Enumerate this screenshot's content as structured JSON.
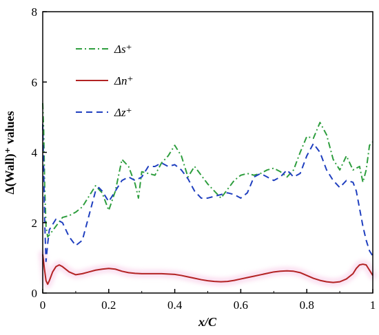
{
  "chart_data": {
    "type": "line",
    "title": "",
    "xlabel": "x/C",
    "ylabel": "Δ(Wall)⁺ values",
    "xlim": [
      0,
      1
    ],
    "ylim": [
      0,
      8
    ],
    "xticks": [
      "0",
      "0.2",
      "0.4",
      "0.6",
      "0.8",
      "1"
    ],
    "yticks": [
      "0",
      "2",
      "4",
      "6",
      "8"
    ],
    "grid": false,
    "legend_position": "top-left",
    "series": [
      {
        "name": "Δs⁺",
        "color": "#2e9e3e",
        "dash": "dash-dot",
        "x": [
          0,
          0.003,
          0.006,
          0.01,
          0.015,
          0.02,
          0.04,
          0.06,
          0.08,
          0.1,
          0.12,
          0.14,
          0.16,
          0.18,
          0.2,
          0.22,
          0.24,
          0.26,
          0.28,
          0.29,
          0.3,
          0.32,
          0.34,
          0.36,
          0.38,
          0.4,
          0.42,
          0.44,
          0.46,
          0.48,
          0.5,
          0.52,
          0.54,
          0.56,
          0.58,
          0.6,
          0.62,
          0.64,
          0.66,
          0.68,
          0.7,
          0.72,
          0.74,
          0.76,
          0.78,
          0.8,
          0.82,
          0.84,
          0.86,
          0.88,
          0.9,
          0.92,
          0.94,
          0.96,
          0.97,
          0.98,
          0.99,
          1.0
        ],
        "y": [
          5.4,
          4.6,
          3.0,
          1.9,
          1.6,
          1.65,
          1.9,
          2.15,
          2.2,
          2.3,
          2.45,
          2.75,
          3.05,
          2.85,
          2.35,
          2.9,
          3.8,
          3.6,
          3.1,
          2.7,
          3.45,
          3.4,
          3.35,
          3.7,
          3.9,
          4.2,
          3.9,
          3.3,
          3.6,
          3.35,
          3.1,
          2.9,
          2.7,
          2.95,
          3.2,
          3.35,
          3.4,
          3.35,
          3.4,
          3.5,
          3.55,
          3.45,
          3.3,
          3.5,
          4.0,
          4.45,
          4.4,
          4.85,
          4.5,
          3.8,
          3.5,
          3.9,
          3.5,
          3.6,
          3.15,
          3.5,
          4.2,
          4.3
        ]
      },
      {
        "name": "Δn⁺",
        "color": "#b22222",
        "dash": "solid",
        "x": [
          0,
          0.005,
          0.01,
          0.015,
          0.02,
          0.03,
          0.04,
          0.05,
          0.06,
          0.08,
          0.1,
          0.12,
          0.14,
          0.16,
          0.18,
          0.2,
          0.22,
          0.24,
          0.26,
          0.28,
          0.3,
          0.32,
          0.34,
          0.36,
          0.38,
          0.4,
          0.42,
          0.44,
          0.46,
          0.48,
          0.5,
          0.52,
          0.54,
          0.56,
          0.58,
          0.6,
          0.62,
          0.64,
          0.66,
          0.68,
          0.7,
          0.72,
          0.74,
          0.76,
          0.78,
          0.8,
          0.82,
          0.84,
          0.86,
          0.88,
          0.9,
          0.92,
          0.94,
          0.95,
          0.96,
          0.97,
          0.98,
          0.99,
          1.0
        ],
        "y": [
          1.1,
          0.7,
          0.35,
          0.25,
          0.35,
          0.6,
          0.75,
          0.8,
          0.75,
          0.6,
          0.52,
          0.55,
          0.6,
          0.65,
          0.68,
          0.7,
          0.68,
          0.62,
          0.58,
          0.56,
          0.55,
          0.55,
          0.55,
          0.55,
          0.54,
          0.53,
          0.5,
          0.46,
          0.42,
          0.38,
          0.35,
          0.33,
          0.32,
          0.33,
          0.36,
          0.4,
          0.44,
          0.48,
          0.52,
          0.56,
          0.6,
          0.62,
          0.63,
          0.62,
          0.58,
          0.5,
          0.42,
          0.36,
          0.32,
          0.3,
          0.32,
          0.4,
          0.55,
          0.7,
          0.8,
          0.82,
          0.8,
          0.65,
          0.5
        ]
      },
      {
        "name": "Δz⁺",
        "color": "#1f3fbf",
        "dash": "dashed",
        "x": [
          0,
          0.003,
          0.006,
          0.01,
          0.015,
          0.02,
          0.03,
          0.04,
          0.06,
          0.08,
          0.1,
          0.12,
          0.14,
          0.16,
          0.17,
          0.18,
          0.2,
          0.22,
          0.24,
          0.26,
          0.28,
          0.3,
          0.32,
          0.34,
          0.36,
          0.38,
          0.4,
          0.42,
          0.44,
          0.46,
          0.48,
          0.5,
          0.52,
          0.54,
          0.56,
          0.58,
          0.6,
          0.62,
          0.64,
          0.66,
          0.68,
          0.7,
          0.72,
          0.74,
          0.76,
          0.78,
          0.8,
          0.82,
          0.84,
          0.86,
          0.88,
          0.9,
          0.92,
          0.94,
          0.95,
          0.96,
          0.97,
          0.98,
          0.99,
          1.0
        ],
        "y": [
          4.8,
          3.5,
          2.0,
          0.9,
          1.4,
          1.8,
          1.95,
          2.1,
          2.0,
          1.6,
          1.35,
          1.5,
          2.2,
          2.9,
          3.0,
          2.9,
          2.6,
          2.9,
          3.2,
          3.3,
          3.2,
          3.3,
          3.6,
          3.6,
          3.7,
          3.6,
          3.65,
          3.5,
          3.25,
          2.9,
          2.7,
          2.7,
          2.75,
          2.8,
          2.85,
          2.8,
          2.7,
          2.85,
          3.3,
          3.4,
          3.3,
          3.2,
          3.3,
          3.5,
          3.3,
          3.4,
          3.9,
          4.25,
          4.0,
          3.5,
          3.2,
          3.0,
          3.2,
          3.15,
          2.9,
          2.4,
          1.9,
          1.5,
          1.2,
          1.05
        ]
      }
    ]
  }
}
